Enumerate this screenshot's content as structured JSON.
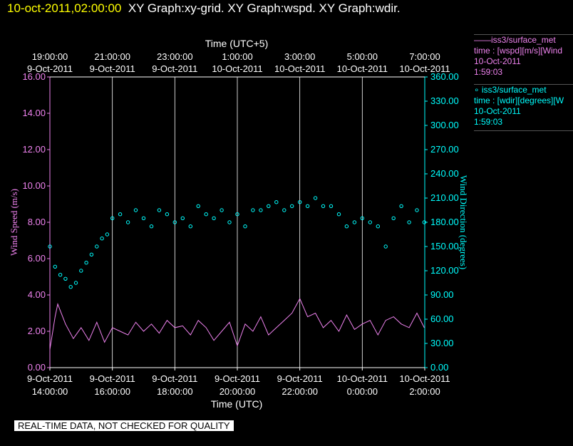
{
  "header": {
    "timestamp": "10-oct-2011,02:00:00",
    "graphs": "XY Graph:xy-grid.  XY Graph:wspd.  XY Graph:wdir."
  },
  "legend": [
    {
      "name": "——iss3/surface_met",
      "detail": "time : [wspd][m/s][Wind",
      "date": "10-Oct-2011",
      "time": "1:59:03",
      "color": "#ee82ee"
    },
    {
      "name": "∘ iss3/surface_met",
      "detail": "time : [wdir][degrees][W",
      "date": "10-Oct-2011",
      "time": "1:59:03",
      "color": "#00ffff"
    }
  ],
  "disclaimer": "REAL-TIME DATA, NOT CHECKED FOR QUALITY",
  "chart_data": {
    "type": "line",
    "top_axis_title": "Time (UTC+5)",
    "top_ticks": [
      {
        "time": "19:00:00",
        "date": "9-Oct-2011"
      },
      {
        "time": "21:00:00",
        "date": "9-Oct-2011"
      },
      {
        "time": "23:00:00",
        "date": "9-Oct-2011"
      },
      {
        "time": "1:00:00",
        "date": "10-Oct-2011"
      },
      {
        "time": "3:00:00",
        "date": "10-Oct-2011"
      },
      {
        "time": "5:00:00",
        "date": "10-Oct-2011"
      },
      {
        "time": "7:00:00",
        "date": "10-Oct-2011"
      }
    ],
    "xlabel": "Time (UTC)",
    "x_ticks": [
      {
        "date": "9-Oct-2011",
        "time": "14:00:00"
      },
      {
        "date": "9-Oct-2011",
        "time": "16:00:00"
      },
      {
        "date": "9-Oct-2011",
        "time": "18:00:00"
      },
      {
        "date": "9-Oct-2011",
        "time": "20:00:00"
      },
      {
        "date": "9-Oct-2011",
        "time": "22:00:00"
      },
      {
        "date": "10-Oct-2011",
        "time": "0:00:00"
      },
      {
        "date": "10-Oct-2011",
        "time": "2:00:00"
      }
    ],
    "xlim": [
      "2011-10-09T14:00:00Z",
      "2011-10-10T02:00:00Z"
    ],
    "y_left": {
      "label": "Wind Speed (m/s)",
      "ylim": [
        0,
        16
      ],
      "ticks": [
        "0.00",
        "2.00",
        "4.00",
        "6.00",
        "8.00",
        "10.00",
        "12.00",
        "14.00",
        "16.00"
      ],
      "color": "#ee82ee"
    },
    "y_right": {
      "label": "Wind Direction (degrees)",
      "ylim": [
        0,
        360
      ],
      "ticks": [
        "0.00",
        "30.00",
        "60.00",
        "90.00",
        "120.00",
        "150.00",
        "180.00",
        "210.00",
        "240.00",
        "270.00",
        "300.00",
        "330.00",
        "360.00"
      ],
      "color": "#00ffff"
    },
    "grid": "vertical",
    "series": [
      {
        "name": "iss3/surface_met time : [wspd][m/s][Wind",
        "axis": "left",
        "style": "line",
        "color": "#ee82ee",
        "x": [
          "2011-10-09T14:00:00Z",
          "2011-10-09T14:10:00Z",
          "2011-10-09T14:15:00Z",
          "2011-10-09T14:30:00Z",
          "2011-10-09T14:45:00Z",
          "2011-10-09T15:00:00Z",
          "2011-10-09T15:15:00Z",
          "2011-10-09T15:30:00Z",
          "2011-10-09T15:45:00Z",
          "2011-10-09T16:00:00Z",
          "2011-10-09T16:15:00Z",
          "2011-10-09T16:30:00Z",
          "2011-10-09T16:45:00Z",
          "2011-10-09T17:00:00Z",
          "2011-10-09T17:15:00Z",
          "2011-10-09T17:30:00Z",
          "2011-10-09T17:45:00Z",
          "2011-10-09T18:00:00Z",
          "2011-10-09T18:15:00Z",
          "2011-10-09T18:30:00Z",
          "2011-10-09T18:45:00Z",
          "2011-10-09T19:00:00Z",
          "2011-10-09T19:15:00Z",
          "2011-10-09T19:30:00Z",
          "2011-10-09T19:45:00Z",
          "2011-10-09T20:00:00Z",
          "2011-10-09T20:15:00Z",
          "2011-10-09T20:30:00Z",
          "2011-10-09T20:45:00Z",
          "2011-10-09T21:00:00Z",
          "2011-10-09T21:15:00Z",
          "2011-10-09T21:30:00Z",
          "2011-10-09T21:45:00Z",
          "2011-10-09T22:00:00Z",
          "2011-10-09T22:15:00Z",
          "2011-10-09T22:30:00Z",
          "2011-10-09T22:45:00Z",
          "2011-10-09T23:00:00Z",
          "2011-10-09T23:15:00Z",
          "2011-10-09T23:30:00Z",
          "2011-10-09T23:45:00Z",
          "2011-10-10T00:00:00Z",
          "2011-10-10T00:15:00Z",
          "2011-10-10T00:30:00Z",
          "2011-10-10T00:45:00Z",
          "2011-10-10T01:00:00Z",
          "2011-10-10T01:15:00Z",
          "2011-10-10T01:30:00Z",
          "2011-10-10T01:45:00Z",
          "2011-10-10T01:59:00Z"
        ],
        "values": [
          1.0,
          2.8,
          3.5,
          2.4,
          1.6,
          2.2,
          1.5,
          2.5,
          1.4,
          2.2,
          2.0,
          1.8,
          2.5,
          2.0,
          2.4,
          1.9,
          2.6,
          2.2,
          2.3,
          1.8,
          2.6,
          2.2,
          1.5,
          2.0,
          2.5,
          1.2,
          2.4,
          2.0,
          2.8,
          1.8,
          2.2,
          2.6,
          3.0,
          3.8,
          2.8,
          3.0,
          2.2,
          2.6,
          2.0,
          2.9,
          2.1,
          2.4,
          2.6,
          1.8,
          2.6,
          2.8,
          2.4,
          2.2,
          3.0,
          2.2
        ]
      },
      {
        "name": "iss3/surface_met time : [wdir][degrees][W",
        "axis": "right",
        "style": "scatter",
        "color": "#00ffff",
        "x": [
          "2011-10-09T14:00:00Z",
          "2011-10-09T14:10:00Z",
          "2011-10-09T14:20:00Z",
          "2011-10-09T14:30:00Z",
          "2011-10-09T14:40:00Z",
          "2011-10-09T14:50:00Z",
          "2011-10-09T15:00:00Z",
          "2011-10-09T15:10:00Z",
          "2011-10-09T15:20:00Z",
          "2011-10-09T15:30:00Z",
          "2011-10-09T15:40:00Z",
          "2011-10-09T15:50:00Z",
          "2011-10-09T16:00:00Z",
          "2011-10-09T16:15:00Z",
          "2011-10-09T16:30:00Z",
          "2011-10-09T16:45:00Z",
          "2011-10-09T17:00:00Z",
          "2011-10-09T17:15:00Z",
          "2011-10-09T17:30:00Z",
          "2011-10-09T17:45:00Z",
          "2011-10-09T18:00:00Z",
          "2011-10-09T18:15:00Z",
          "2011-10-09T18:30:00Z",
          "2011-10-09T18:45:00Z",
          "2011-10-09T19:00:00Z",
          "2011-10-09T19:15:00Z",
          "2011-10-09T19:30:00Z",
          "2011-10-09T19:45:00Z",
          "2011-10-09T20:00:00Z",
          "2011-10-09T20:15:00Z",
          "2011-10-09T20:30:00Z",
          "2011-10-09T20:45:00Z",
          "2011-10-09T21:00:00Z",
          "2011-10-09T21:15:00Z",
          "2011-10-09T21:30:00Z",
          "2011-10-09T21:45:00Z",
          "2011-10-09T22:00:00Z",
          "2011-10-09T22:15:00Z",
          "2011-10-09T22:30:00Z",
          "2011-10-09T22:45:00Z",
          "2011-10-09T23:00:00Z",
          "2011-10-09T23:15:00Z",
          "2011-10-09T23:30:00Z",
          "2011-10-09T23:45:00Z",
          "2011-10-10T00:00:00Z",
          "2011-10-10T00:15:00Z",
          "2011-10-10T00:30:00Z",
          "2011-10-10T00:45:00Z",
          "2011-10-10T01:00:00Z",
          "2011-10-10T01:15:00Z",
          "2011-10-10T01:30:00Z",
          "2011-10-10T01:45:00Z",
          "2011-10-10T01:59:00Z"
        ],
        "values": [
          150,
          125,
          115,
          110,
          100,
          105,
          120,
          130,
          140,
          150,
          160,
          165,
          185,
          190,
          180,
          195,
          185,
          175,
          195,
          190,
          180,
          185,
          175,
          200,
          190,
          185,
          195,
          180,
          190,
          175,
          195,
          195,
          200,
          205,
          195,
          200,
          205,
          200,
          210,
          200,
          200,
          190,
          175,
          180,
          185,
          180,
          175,
          150,
          185,
          200,
          180,
          195,
          180
        ]
      }
    ]
  }
}
